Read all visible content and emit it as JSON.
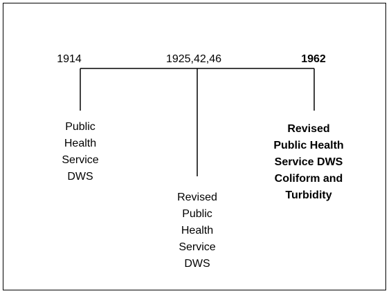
{
  "nodes": [
    {
      "year": "1914",
      "label_lines": [
        "Public",
        "Health",
        "Service",
        "DWS"
      ],
      "bold": false
    },
    {
      "year": "1925,42,46",
      "label_lines": [
        "Revised",
        "Public",
        "Health",
        "Service",
        "DWS"
      ],
      "bold": false
    },
    {
      "year": "1962",
      "label_lines": [
        "Revised",
        "Public Health",
        "Service DWS",
        "Coliform and",
        "Turbidity"
      ],
      "bold": true
    }
  ]
}
